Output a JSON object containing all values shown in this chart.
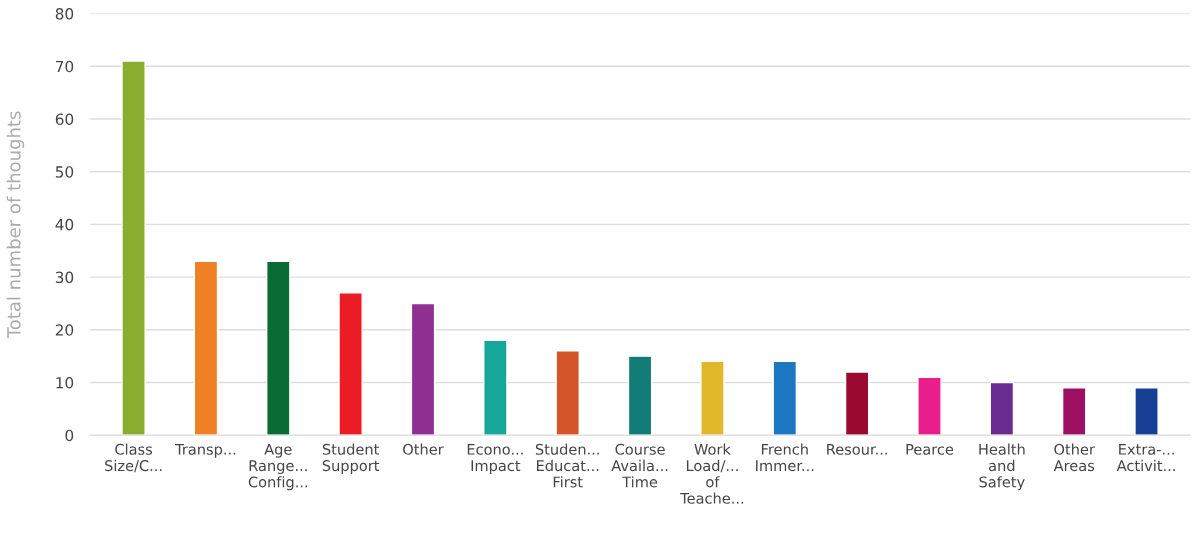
{
  "chart_data": {
    "type": "bar",
    "ylabel": "Total number of thoughts",
    "categories": [
      "Class\nSize/C...",
      "Transp...",
      "Age\nRange...\nConfig...",
      "Student\nSupport",
      "Other",
      "Econo...\nImpact",
      "Studen...\nEducat...\nFirst",
      "Course\nAvaila...\nTime",
      "Work\nLoad/...\nof\nTeache...",
      "French\nImmer...",
      "Resour...",
      "Pearce",
      "Health\nand\nSafety",
      "Other\nAreas",
      "Extra-...\nActivit..."
    ],
    "values": [
      71,
      33,
      33,
      27,
      25,
      18,
      16,
      15,
      14,
      14,
      12,
      11,
      10,
      9,
      9
    ],
    "colors": [
      "#8bad2f",
      "#f08025",
      "#0b6b35",
      "#ec1c24",
      "#8e2f91",
      "#17a79a",
      "#d4562a",
      "#127c77",
      "#e0b82a",
      "#1d77c2",
      "#9a0a30",
      "#e91e8c",
      "#6a2c91",
      "#9c0f63",
      "#173f95"
    ],
    "ylim": [
      0,
      80
    ],
    "yticks": [
      0,
      10,
      20,
      30,
      40,
      50,
      60,
      70,
      80
    ],
    "grid": "y"
  }
}
